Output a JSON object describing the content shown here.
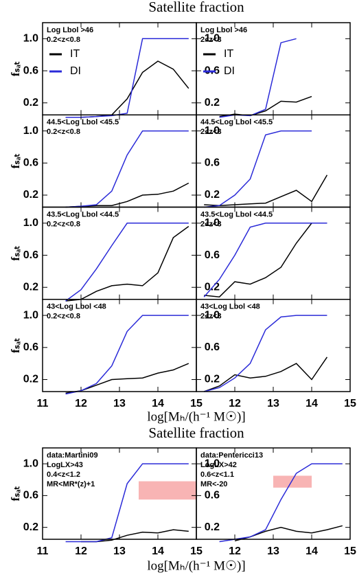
{
  "chart_data": [
    {
      "type": "line",
      "title": "Satellite fraction",
      "x_label": "log[Mₕ/(h⁻¹ M☉)]",
      "y_label": "fₛₐₜ",
      "xlim": [
        11,
        15
      ],
      "xticks": [
        11,
        12,
        13,
        14,
        15
      ],
      "ylim": [
        0.05,
        1.2
      ],
      "yticks": [
        0.2,
        0.6,
        {
          "value": 1,
          "label": "1.0"
        }
      ],
      "panels": [
        {
          "labels": [
            "Log Lbol >46",
            "0.2<z<0.8"
          ],
          "legend": true,
          "x": [
            11.2,
            11.6,
            12.0,
            12.4,
            12.8,
            13.2,
            13.6,
            14.0,
            14.4,
            14.8
          ],
          "series": [
            {
              "name": "IT",
              "color": "#000000",
              "values": [
                null,
                0.02,
                0.02,
                0.03,
                0.05,
                0.25,
                0.58,
                0.72,
                0.62,
                0.38
              ]
            },
            {
              "name": "DI",
              "color": "#2a2ad8",
              "values": [
                null,
                0.02,
                0.02,
                0.03,
                0.04,
                0.07,
                1.0,
                1.0,
                1.0,
                1.0
              ]
            }
          ]
        },
        {
          "labels": [
            "Log Lbol >46",
            "2<z<3"
          ],
          "legend": true,
          "x": [
            11.2,
            11.6,
            12.0,
            12.4,
            12.8,
            13.2,
            13.6,
            14.0,
            14.4,
            14.8
          ],
          "series": [
            {
              "name": "IT",
              "color": "#000000",
              "values": [
                null,
                0.03,
                0.06,
                0.04,
                0.1,
                0.22,
                0.21,
                0.28,
                null,
                null
              ]
            },
            {
              "name": "DI",
              "color": "#2a2ad8",
              "values": [
                null,
                0.02,
                0.05,
                0.04,
                0.12,
                0.95,
                1.0,
                null,
                null,
                null
              ]
            }
          ]
        },
        {
          "labels": [
            "44.5<Log Lbol <45.5",
            "0.2<z<0.8"
          ],
          "legend": false,
          "x": [
            11.2,
            11.6,
            12.0,
            12.4,
            12.8,
            13.2,
            13.6,
            14.0,
            14.4,
            14.8
          ],
          "series": [
            {
              "name": "IT",
              "color": "#000000",
              "values": [
                null,
                0.05,
                0.06,
                0.07,
                0.07,
                0.12,
                0.2,
                0.21,
                0.25,
                0.35
              ]
            },
            {
              "name": "DI",
              "color": "#2a2ad8",
              "values": [
                null,
                0.05,
                0.06,
                0.08,
                0.25,
                0.7,
                1.0,
                1.0,
                1.0,
                1.0
              ]
            }
          ]
        },
        {
          "labels": [
            "44.5<Log Lbol <45.5",
            "2<z<3"
          ],
          "legend": false,
          "x": [
            11.2,
            11.6,
            12.0,
            12.4,
            12.8,
            13.2,
            13.6,
            14.0,
            14.4,
            14.8
          ],
          "series": [
            {
              "name": "IT",
              "color": "#000000",
              "values": [
                0.08,
                0.07,
                0.08,
                0.09,
                0.1,
                0.18,
                0.26,
                0.12,
                0.45,
                null
              ]
            },
            {
              "name": "DI",
              "color": "#2a2ad8",
              "values": [
                0.05,
                0.07,
                0.2,
                0.4,
                0.95,
                1.0,
                1.0,
                1.0,
                null,
                null
              ]
            }
          ]
        },
        {
          "labels": [
            "43.5<Log Lbol <44.5",
            "0.2<z<0.8"
          ],
          "legend": false,
          "x": [
            11.2,
            11.6,
            12.0,
            12.4,
            12.8,
            13.2,
            13.6,
            14.0,
            14.4,
            14.8
          ],
          "series": [
            {
              "name": "IT",
              "color": "#000000",
              "values": [
                null,
                0.03,
                0.05,
                0.15,
                0.22,
                0.24,
                0.22,
                0.38,
                0.82,
                0.96
              ]
            },
            {
              "name": "DI",
              "color": "#2a2ad8",
              "values": [
                null,
                0.03,
                0.17,
                0.43,
                0.72,
                1.0,
                1.0,
                1.0,
                1.0,
                1.0
              ]
            }
          ]
        },
        {
          "labels": [
            "43.5<Log Lbol <44.5",
            "2<z<3"
          ],
          "legend": false,
          "x": [
            11.2,
            11.6,
            12.0,
            12.4,
            12.8,
            13.2,
            13.6,
            14.0,
            14.4,
            14.8
          ],
          "series": [
            {
              "name": "IT",
              "color": "#000000",
              "values": [
                0.1,
                0.08,
                0.27,
                0.24,
                0.32,
                0.45,
                0.75,
                1.0,
                1.0,
                null
              ]
            },
            {
              "name": "DI",
              "color": "#2a2ad8",
              "values": [
                0.08,
                0.3,
                0.6,
                0.95,
                1.0,
                1.0,
                1.0,
                1.0,
                1.0,
                null
              ]
            }
          ]
        },
        {
          "labels": [
            "43<Log Lbol <48",
            "0.2<z<0.8"
          ],
          "legend": false,
          "x": [
            11.2,
            11.6,
            12.0,
            12.4,
            12.8,
            13.2,
            13.6,
            14.0,
            14.4,
            14.8
          ],
          "series": [
            {
              "name": "IT",
              "color": "#000000",
              "values": [
                null,
                0.03,
                0.06,
                0.13,
                0.2,
                0.21,
                0.22,
                0.28,
                0.32,
                0.4
              ]
            },
            {
              "name": "DI",
              "color": "#2a2ad8",
              "values": [
                null,
                0.02,
                0.06,
                0.15,
                0.37,
                0.8,
                1.0,
                1.0,
                1.0,
                1.0
              ]
            }
          ]
        },
        {
          "labels": [
            "43<Log Lbol <48",
            "2<z<3"
          ],
          "legend": false,
          "x": [
            11.2,
            11.6,
            12.0,
            12.4,
            12.8,
            13.2,
            13.6,
            14.0,
            14.4,
            14.8
          ],
          "series": [
            {
              "name": "IT",
              "color": "#000000",
              "values": [
                0.05,
                0.12,
                0.26,
                0.22,
                0.24,
                0.3,
                0.4,
                0.2,
                0.48,
                null
              ]
            },
            {
              "name": "DI",
              "color": "#2a2ad8",
              "values": [
                0.05,
                0.1,
                0.22,
                0.4,
                0.82,
                0.98,
                1.0,
                1.0,
                1.0,
                null
              ]
            }
          ]
        }
      ]
    },
    {
      "type": "line",
      "title": "Satellite fraction",
      "x_label": "log[Mₕ/(h⁻¹ M☉)]",
      "y_label": "fₛₐₜ",
      "xlim": [
        11,
        15
      ],
      "xticks": [
        11,
        12,
        13,
        14,
        15
      ],
      "ylim": [
        0.05,
        1.2
      ],
      "yticks": [
        0.2,
        0.6,
        {
          "value": 1,
          "label": "1.0"
        }
      ],
      "panels": [
        {
          "labels": [
            "data:Martini09",
            "LogLX>43",
            "0.4<z<1.2",
            "MR<MR*(z)+1"
          ],
          "legend": false,
          "x": [
            11.2,
            11.6,
            12.0,
            12.4,
            12.8,
            13.2,
            13.6,
            14.0,
            14.4,
            14.8
          ],
          "band": {
            "x": [
              13.5,
              15
            ],
            "y": [
              0.55,
              0.78
            ],
            "color": "#f8b4b4"
          },
          "series": [
            {
              "name": "IT",
              "color": "#000000",
              "values": [
                null,
                null,
                0.02,
                0.02,
                0.04,
                0.1,
                0.14,
                0.13,
                0.17,
                0.15
              ]
            },
            {
              "name": "DI",
              "color": "#2a2ad8",
              "values": [
                null,
                0.02,
                0.02,
                0.02,
                0.07,
                0.75,
                1.0,
                1.0,
                1.0,
                1.0
              ]
            }
          ]
        },
        {
          "labels": [
            "data:Pentericci13",
            "LogLX>42",
            "0.6<z<1.1",
            "MR<-20"
          ],
          "legend": false,
          "x": [
            11.2,
            11.6,
            12.0,
            12.4,
            12.8,
            13.2,
            13.6,
            14.0,
            14.4,
            14.8
          ],
          "band": {
            "x": [
              13,
              14
            ],
            "y": [
              0.7,
              0.85
            ],
            "color": "#f8b4b4"
          },
          "series": [
            {
              "name": "IT",
              "color": "#000000",
              "values": [
                null,
                null,
                0.03,
                0.08,
                0.15,
                0.2,
                0.15,
                0.13,
                0.17,
                0.22
              ]
            },
            {
              "name": "DI",
              "color": "#2a2ad8",
              "values": [
                null,
                0.02,
                0.05,
                0.08,
                0.17,
                0.55,
                0.88,
                1.0,
                1.0,
                1.0
              ]
            }
          ]
        }
      ]
    }
  ]
}
